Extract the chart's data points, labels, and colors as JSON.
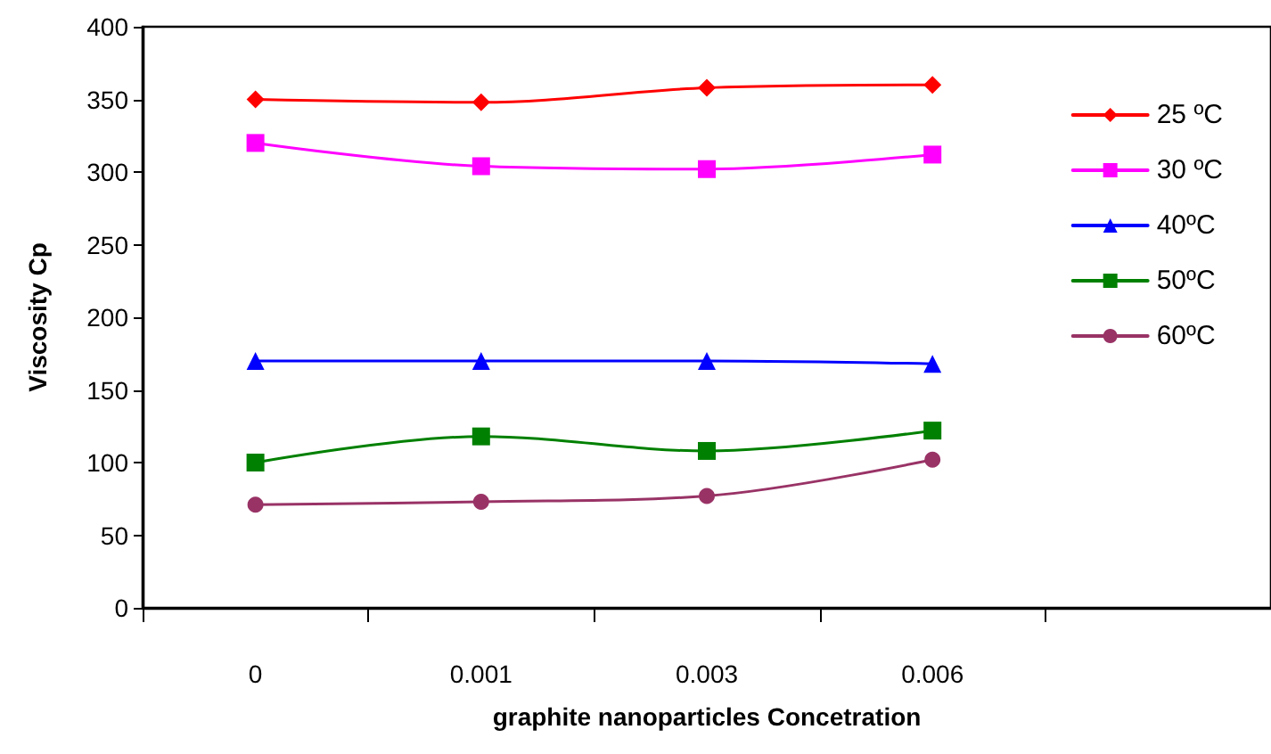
{
  "chart_data": {
    "type": "line",
    "xlabel": "graphite nanoparticles Concetration",
    "ylabel": "Viscosity Cp",
    "categories": [
      "0",
      "0.001",
      "0.003",
      "0.006",
      null
    ],
    "series": [
      {
        "name": "25 ºC",
        "color": "#ff0000",
        "marker": "diamond",
        "values": [
          350,
          348,
          358,
          360,
          null
        ]
      },
      {
        "name": "30 ºC",
        "color": "#ff00ff",
        "marker": "square",
        "values": [
          320,
          304,
          302,
          312,
          null
        ]
      },
      {
        "name": "40ºC",
        "color": "#0000ff",
        "marker": "triangle",
        "values": [
          170,
          170,
          170,
          168,
          null
        ]
      },
      {
        "name": "50ºC",
        "color": "#008000",
        "marker": "square",
        "values": [
          100,
          118,
          108,
          122,
          null
        ]
      },
      {
        "name": "60ºC",
        "color": "#993366",
        "marker": "circle",
        "values": [
          71,
          73,
          77,
          102,
          null
        ]
      }
    ],
    "ylim": [
      0,
      400
    ],
    "yticks": [
      0,
      50,
      100,
      150,
      200,
      250,
      300,
      350,
      400
    ],
    "grid": false,
    "legend": "top right",
    "line_style": "solid"
  }
}
